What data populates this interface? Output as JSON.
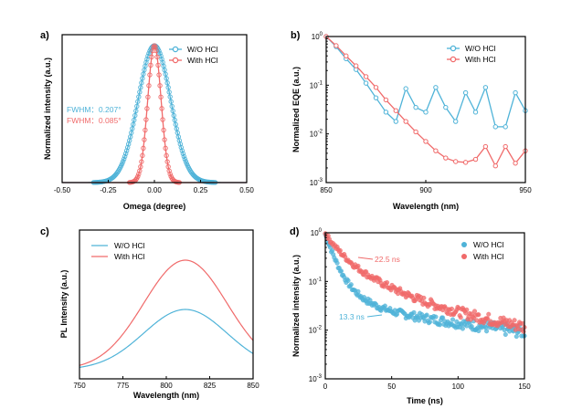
{
  "chart_data": [
    {
      "panel": "a)",
      "type": "line",
      "xlabel": "Omega (degree)",
      "ylabel": "Normalized intensity (a.u.)",
      "xlim": [
        -0.5,
        0.5
      ],
      "ylim": [
        0,
        1.08
      ],
      "xticks": [
        -0.5,
        -0.25,
        0.0,
        0.25,
        0.5
      ],
      "xtick_labels": [
        "-0.50",
        "-0.25",
        "0.00",
        "0.25",
        "0.50"
      ],
      "legend_position": "top-right",
      "series": [
        {
          "name": "W/O HCl",
          "color": "#4fb3d8",
          "marker": "circle",
          "fwhm": 0.207
        },
        {
          "name": "With HCl",
          "color": "#f06a6a",
          "marker": "circle",
          "fwhm": 0.085
        }
      ],
      "annotations": [
        "FWHM：0.207°",
        "FWHM：0.085°"
      ]
    },
    {
      "panel": "b)",
      "type": "line",
      "xlabel": "Wavelength (nm)",
      "ylabel": "Normalized EQE (a.u.)",
      "xlim": [
        850,
        950
      ],
      "ylim_log10": [
        -3,
        0
      ],
      "yscale": "log",
      "xticks": [
        850,
        900,
        950
      ],
      "xtick_labels": [
        "850",
        "900",
        "950"
      ],
      "ytick_labels": [
        "10-3",
        "10-2",
        "10-1",
        "100"
      ],
      "legend_position": "top-right",
      "series": [
        {
          "name": "W/O HCl",
          "color": "#4fb3d8",
          "marker": "circle",
          "x": [
            850,
            855,
            860,
            865,
            870,
            875,
            880,
            885,
            890,
            895,
            900,
            905,
            910,
            915,
            920,
            925,
            930,
            935,
            940,
            945,
            950
          ],
          "y": [
            1.0,
            0.62,
            0.35,
            0.21,
            0.11,
            0.055,
            0.028,
            0.018,
            0.085,
            0.035,
            0.028,
            0.09,
            0.035,
            0.018,
            0.07,
            0.028,
            0.09,
            0.014,
            0.014,
            0.07,
            0.03
          ]
        },
        {
          "name": "With HCl",
          "color": "#f06a6a",
          "marker": "circle",
          "x": [
            850,
            855,
            860,
            865,
            870,
            875,
            880,
            885,
            890,
            895,
            900,
            905,
            910,
            915,
            920,
            925,
            930,
            935,
            940,
            945,
            950
          ],
          "y": [
            1.0,
            0.65,
            0.4,
            0.25,
            0.15,
            0.09,
            0.05,
            0.03,
            0.018,
            0.011,
            0.007,
            0.0045,
            0.0032,
            0.0027,
            0.0026,
            0.003,
            0.0055,
            0.0022,
            0.0055,
            0.0025,
            0.0045
          ]
        }
      ]
    },
    {
      "panel": "c)",
      "type": "line",
      "xlabel": "Wavelength (nm)",
      "ylabel": "PL Intensity (a.u.)",
      "xlim": [
        750,
        850
      ],
      "ylim": [
        0,
        1.15
      ],
      "xticks": [
        750,
        775,
        800,
        825,
        850
      ],
      "xtick_labels": [
        "750",
        "775",
        "800",
        "825",
        "850"
      ],
      "legend_position": "top-left",
      "series": [
        {
          "name": "W/O HCl",
          "color": "#4fb3d8",
          "peak_x": 811,
          "peak_y": 0.55,
          "width_nm": 24,
          "baseline": 0.0
        },
        {
          "name": "With HCl",
          "color": "#f06a6a",
          "peak_x": 811,
          "peak_y": 1.0,
          "width_nm": 24,
          "baseline": 0.0
        }
      ]
    },
    {
      "panel": "d)",
      "type": "scatter",
      "xlabel": "Time (ns)",
      "ylabel": "Normalized intensity (a.u.)",
      "xlim": [
        0,
        150
      ],
      "ylim_log10": [
        -3,
        0
      ],
      "yscale": "log",
      "xticks": [
        0,
        50,
        100,
        150
      ],
      "xtick_labels": [
        "0",
        "50",
        "100",
        "150"
      ],
      "ytick_labels": [
        "10-3",
        "10-2",
        "10-1",
        "100"
      ],
      "legend_position": "top-right",
      "series": [
        {
          "name": "W/O  HCl",
          "color": "#4fb3d8",
          "marker": "circle",
          "lifetime_ns": 13.3
        },
        {
          "name": "With  HCl",
          "color": "#f06a6a",
          "marker": "circle",
          "lifetime_ns": 22.5
        }
      ],
      "annotations": [
        "22.5 ns",
        "13.3 ns"
      ]
    }
  ]
}
